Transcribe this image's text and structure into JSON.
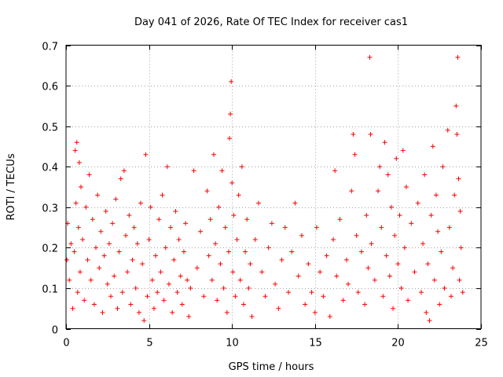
{
  "chart_data": {
    "type": "scatter",
    "title": "Day 041 of 2026, Rate Of TEC Index for receiver cas1",
    "xlabel": "GPS time / hours",
    "ylabel": "ROTI / TECUs",
    "xlim": [
      0,
      25
    ],
    "ylim": [
      0,
      0.7
    ],
    "x_ticks": [
      0,
      5,
      10,
      15,
      20,
      25
    ],
    "y_ticks": [
      0,
      0.1,
      0.2,
      0.3,
      0.4,
      0.5,
      0.6,
      0.7
    ],
    "x_tick_labels": [
      "0",
      "5",
      "10",
      "15",
      "20",
      "25"
    ],
    "y_tick_labels": [
      "0",
      "0.1",
      "0.2",
      "0.3",
      "0.4",
      "0.5",
      "0.6",
      "0.7"
    ],
    "grid": true,
    "marker": "+",
    "marker_color": "#ff0000",
    "series": [
      {
        "name": "ROTI",
        "points": [
          [
            0.05,
            0.17
          ],
          [
            0.1,
            0.26
          ],
          [
            0.2,
            0.12
          ],
          [
            0.3,
            0.21
          ],
          [
            0.4,
            0.05
          ],
          [
            0.5,
            0.19
          ],
          [
            0.55,
            0.44
          ],
          [
            0.6,
            0.31
          ],
          [
            0.65,
            0.46
          ],
          [
            0.7,
            0.09
          ],
          [
            0.75,
            0.25
          ],
          [
            0.8,
            0.41
          ],
          [
            0.85,
            0.14
          ],
          [
            0.9,
            0.35
          ],
          [
            1.0,
            0.22
          ],
          [
            1.1,
            0.07
          ],
          [
            1.2,
            0.3
          ],
          [
            1.3,
            0.17
          ],
          [
            1.4,
            0.38
          ],
          [
            1.5,
            0.12
          ],
          [
            1.6,
            0.27
          ],
          [
            1.7,
            0.06
          ],
          [
            1.8,
            0.2
          ],
          [
            1.9,
            0.33
          ],
          [
            2.0,
            0.15
          ],
          [
            2.1,
            0.24
          ],
          [
            2.2,
            0.04
          ],
          [
            2.3,
            0.18
          ],
          [
            2.4,
            0.29
          ],
          [
            2.5,
            0.11
          ],
          [
            2.6,
            0.21
          ],
          [
            2.7,
            0.08
          ],
          [
            2.8,
            0.26
          ],
          [
            2.9,
            0.13
          ],
          [
            3.0,
            0.32
          ],
          [
            3.1,
            0.05
          ],
          [
            3.2,
            0.19
          ],
          [
            3.3,
            0.37
          ],
          [
            3.4,
            0.09
          ],
          [
            3.5,
            0.39
          ],
          [
            3.6,
            0.23
          ],
          [
            3.7,
            0.14
          ],
          [
            3.8,
            0.28
          ],
          [
            3.9,
            0.06
          ],
          [
            4.0,
            0.17
          ],
          [
            4.1,
            0.25
          ],
          [
            4.2,
            0.1
          ],
          [
            4.3,
            0.21
          ],
          [
            4.4,
            0.04
          ],
          [
            4.5,
            0.31
          ],
          [
            4.6,
            0.16
          ],
          [
            4.7,
            0.02
          ],
          [
            4.8,
            0.43
          ],
          [
            4.9,
            0.08
          ],
          [
            5.0,
            0.22
          ],
          [
            5.1,
            0.3
          ],
          [
            5.2,
            0.12
          ],
          [
            5.3,
            0.05
          ],
          [
            5.4,
            0.18
          ],
          [
            5.5,
            0.09
          ],
          [
            5.6,
            0.27
          ],
          [
            5.7,
            0.14
          ],
          [
            5.8,
            0.33
          ],
          [
            5.9,
            0.07
          ],
          [
            6.0,
            0.2
          ],
          [
            6.1,
            0.4
          ],
          [
            6.2,
            0.11
          ],
          [
            6.3,
            0.25
          ],
          [
            6.4,
            0.04
          ],
          [
            6.5,
            0.17
          ],
          [
            6.6,
            0.29
          ],
          [
            6.7,
            0.09
          ],
          [
            6.8,
            0.22
          ],
          [
            6.9,
            0.13
          ],
          [
            7.0,
            0.06
          ],
          [
            7.1,
            0.19
          ],
          [
            7.2,
            0.26
          ],
          [
            7.3,
            0.12
          ],
          [
            7.4,
            0.03
          ],
          [
            7.5,
            0.1
          ],
          [
            7.7,
            0.39
          ],
          [
            7.9,
            0.15
          ],
          [
            8.1,
            0.24
          ],
          [
            8.3,
            0.08
          ],
          [
            8.5,
            0.34
          ],
          [
            8.6,
            0.18
          ],
          [
            8.7,
            0.27
          ],
          [
            8.8,
            0.12
          ],
          [
            8.9,
            0.43
          ],
          [
            9.0,
            0.21
          ],
          [
            9.1,
            0.07
          ],
          [
            9.2,
            0.3
          ],
          [
            9.3,
            0.16
          ],
          [
            9.4,
            0.39
          ],
          [
            9.5,
            0.1
          ],
          [
            9.6,
            0.25
          ],
          [
            9.7,
            0.04
          ],
          [
            9.8,
            0.19
          ],
          [
            9.85,
            0.47
          ],
          [
            9.9,
            0.53
          ],
          [
            9.95,
            0.61
          ],
          [
            10.0,
            0.36
          ],
          [
            10.05,
            0.14
          ],
          [
            10.1,
            0.28
          ],
          [
            10.2,
            0.08
          ],
          [
            10.3,
            0.22
          ],
          [
            10.4,
            0.33
          ],
          [
            10.5,
            0.12
          ],
          [
            10.6,
            0.4
          ],
          [
            10.7,
            0.06
          ],
          [
            10.8,
            0.19
          ],
          [
            10.9,
            0.27
          ],
          [
            11.0,
            0.1
          ],
          [
            11.1,
            0.16
          ],
          [
            11.2,
            0.03
          ],
          [
            11.4,
            0.22
          ],
          [
            11.6,
            0.31
          ],
          [
            11.8,
            0.14
          ],
          [
            12.0,
            0.08
          ],
          [
            12.2,
            0.2
          ],
          [
            12.4,
            0.26
          ],
          [
            12.6,
            0.11
          ],
          [
            12.8,
            0.05
          ],
          [
            13.0,
            0.17
          ],
          [
            13.2,
            0.25
          ],
          [
            13.4,
            0.09
          ],
          [
            13.6,
            0.19
          ],
          [
            13.8,
            0.31
          ],
          [
            14.0,
            0.13
          ],
          [
            14.2,
            0.23
          ],
          [
            14.4,
            0.06
          ],
          [
            14.6,
            0.16
          ],
          [
            14.8,
            0.09
          ],
          [
            15.0,
            0.04
          ],
          [
            15.1,
            0.25
          ],
          [
            15.3,
            0.14
          ],
          [
            15.5,
            0.08
          ],
          [
            15.7,
            0.18
          ],
          [
            15.9,
            0.03
          ],
          [
            16.1,
            0.22
          ],
          [
            16.2,
            0.39
          ],
          [
            16.3,
            0.13
          ],
          [
            16.5,
            0.27
          ],
          [
            16.7,
            0.07
          ],
          [
            16.9,
            0.17
          ],
          [
            17.0,
            0.11
          ],
          [
            17.2,
            0.34
          ],
          [
            17.3,
            0.48
          ],
          [
            17.4,
            0.43
          ],
          [
            17.5,
            0.23
          ],
          [
            17.6,
            0.09
          ],
          [
            17.8,
            0.19
          ],
          [
            18.0,
            0.06
          ],
          [
            18.1,
            0.28
          ],
          [
            18.2,
            0.15
          ],
          [
            18.3,
            0.67
          ],
          [
            18.35,
            0.48
          ],
          [
            18.4,
            0.21
          ],
          [
            18.6,
            0.12
          ],
          [
            18.8,
            0.34
          ],
          [
            18.9,
            0.4
          ],
          [
            19.0,
            0.25
          ],
          [
            19.1,
            0.08
          ],
          [
            19.2,
            0.46
          ],
          [
            19.3,
            0.18
          ],
          [
            19.4,
            0.38
          ],
          [
            19.5,
            0.13
          ],
          [
            19.6,
            0.3
          ],
          [
            19.7,
            0.05
          ],
          [
            19.8,
            0.23
          ],
          [
            19.9,
            0.42
          ],
          [
            20.0,
            0.16
          ],
          [
            20.1,
            0.28
          ],
          [
            20.2,
            0.1
          ],
          [
            20.3,
            0.44
          ],
          [
            20.4,
            0.2
          ],
          [
            20.5,
            0.35
          ],
          [
            20.6,
            0.07
          ],
          [
            20.8,
            0.26
          ],
          [
            21.0,
            0.14
          ],
          [
            21.2,
            0.31
          ],
          [
            21.4,
            0.09
          ],
          [
            21.5,
            0.21
          ],
          [
            21.6,
            0.38
          ],
          [
            21.7,
            0.04
          ],
          [
            21.8,
            0.16
          ],
          [
            21.9,
            0.02
          ],
          [
            22.0,
            0.28
          ],
          [
            22.1,
            0.45
          ],
          [
            22.2,
            0.12
          ],
          [
            22.3,
            0.33
          ],
          [
            22.4,
            0.24
          ],
          [
            22.5,
            0.06
          ],
          [
            22.6,
            0.19
          ],
          [
            22.7,
            0.4
          ],
          [
            22.8,
            0.1
          ],
          [
            23.0,
            0.49
          ],
          [
            23.1,
            0.25
          ],
          [
            23.2,
            0.08
          ],
          [
            23.3,
            0.15
          ],
          [
            23.4,
            0.33
          ],
          [
            23.5,
            0.55
          ],
          [
            23.55,
            0.48
          ],
          [
            23.6,
            0.67
          ],
          [
            23.65,
            0.37
          ],
          [
            23.7,
            0.12
          ],
          [
            23.75,
            0.29
          ],
          [
            23.8,
            0.2
          ],
          [
            23.9,
            0.09
          ]
        ]
      }
    ]
  }
}
